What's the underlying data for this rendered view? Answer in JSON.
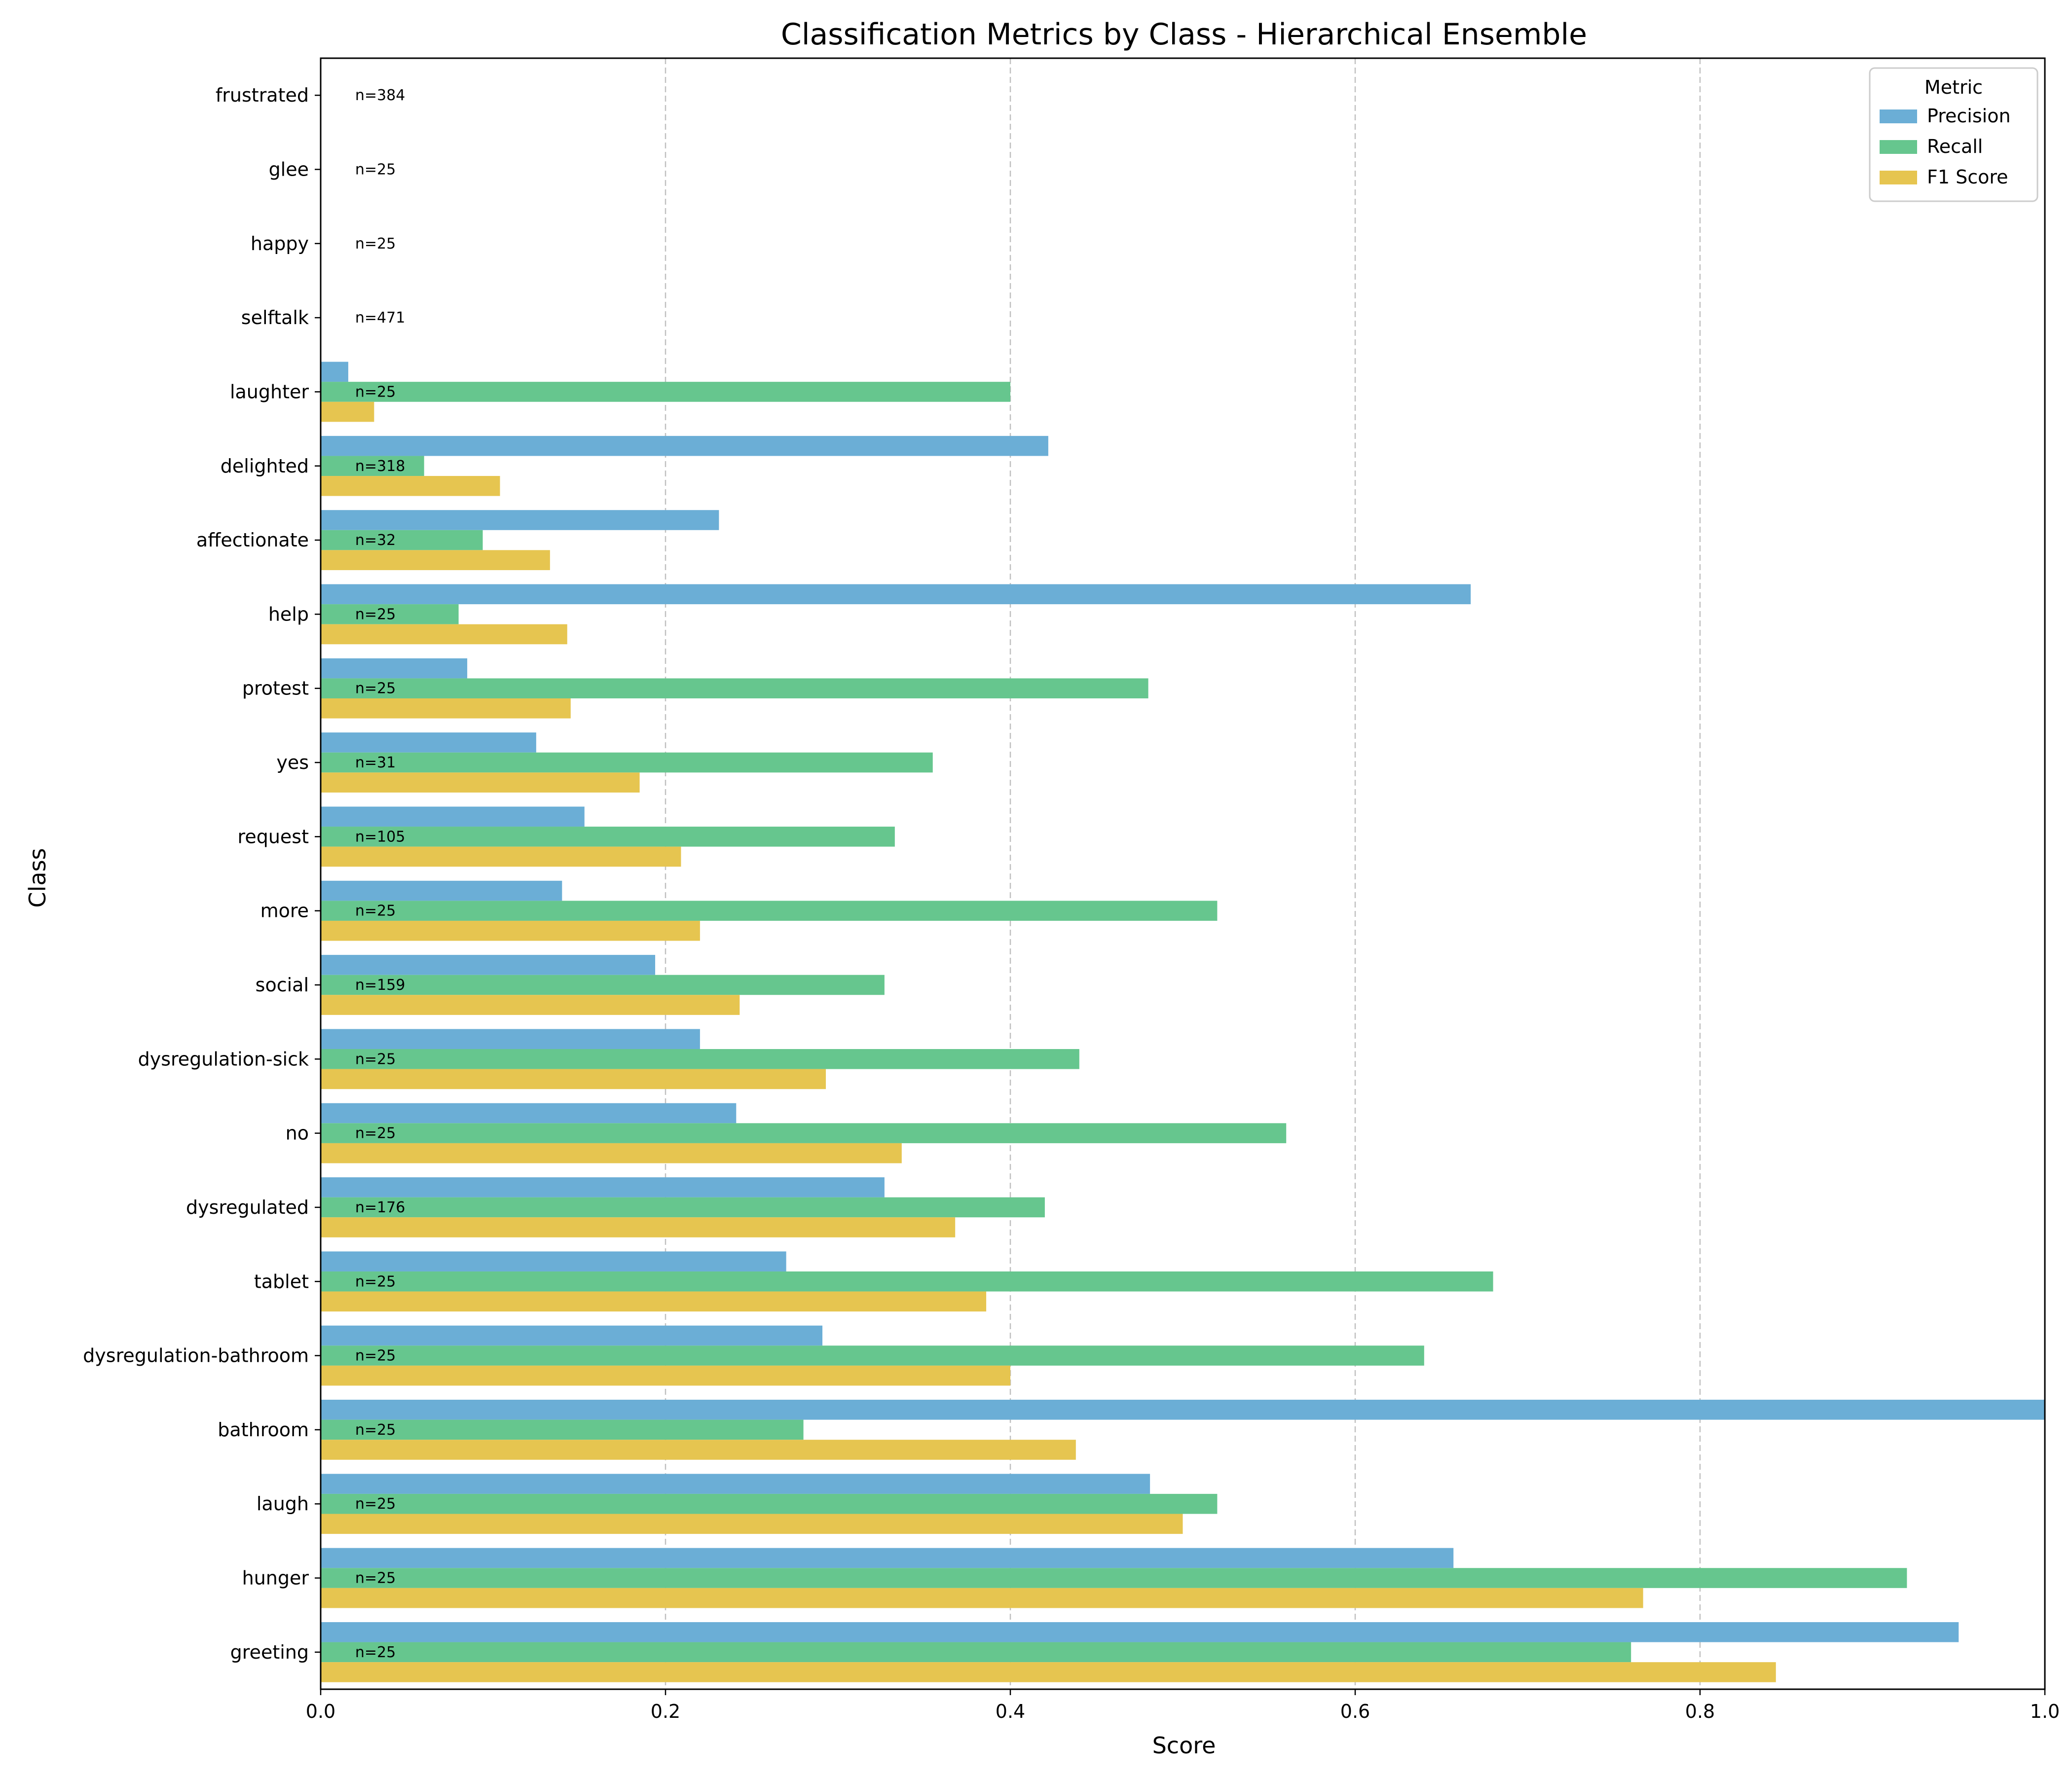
{
  "chart_data": {
    "type": "bar",
    "orientation": "horizontal",
    "title": "Classification Metrics by Class - Hierarchical Ensemble",
    "xlabel": "Score",
    "ylabel": "Class",
    "xlim": [
      0.0,
      1.0
    ],
    "xticks": [
      "0.0",
      "0.2",
      "0.4",
      "0.6",
      "0.8",
      "1.0"
    ],
    "grid": "vertical dashed",
    "categories": [
      "frustrated",
      "glee",
      "happy",
      "selftalk",
      "laughter",
      "delighted",
      "affectionate",
      "help",
      "protest",
      "yes",
      "request",
      "more",
      "social",
      "dysregulation-sick",
      "no",
      "dysregulated",
      "tablet",
      "dysregulation-bathroom",
      "bathroom",
      "laugh",
      "hunger",
      "greeting"
    ],
    "counts": [
      "n=384",
      "n=25",
      "n=25",
      "n=471",
      "n=25",
      "n=318",
      "n=32",
      "n=25",
      "n=25",
      "n=31",
      "n=105",
      "n=25",
      "n=159",
      "n=25",
      "n=25",
      "n=176",
      "n=25",
      "n=25",
      "n=25",
      "n=25",
      "n=25",
      "n=25"
    ],
    "series": [
      {
        "name": "Precision",
        "color": "#6baed6",
        "values": [
          0,
          0,
          0,
          0,
          0.016,
          0.422,
          0.231,
          0.667,
          0.085,
          0.125,
          0.153,
          0.14,
          0.194,
          0.22,
          0.241,
          0.327,
          0.27,
          0.291,
          1.0,
          0.481,
          0.657,
          0.95
        ]
      },
      {
        "name": "Recall",
        "color": "#66c68e",
        "values": [
          0,
          0,
          0,
          0,
          0.4,
          0.06,
          0.094,
          0.08,
          0.48,
          0.355,
          0.333,
          0.52,
          0.327,
          0.44,
          0.56,
          0.42,
          0.68,
          0.64,
          0.28,
          0.52,
          0.92,
          0.76
        ]
      },
      {
        "name": "F1 Score",
        "color": "#e6c550",
        "values": [
          0,
          0,
          0,
          0,
          0.031,
          0.104,
          0.133,
          0.143,
          0.145,
          0.185,
          0.209,
          0.22,
          0.243,
          0.293,
          0.337,
          0.368,
          0.386,
          0.4,
          0.438,
          0.5,
          0.767,
          0.844
        ]
      }
    ],
    "legend": {
      "title": "Metric",
      "placement": "top-right"
    }
  }
}
